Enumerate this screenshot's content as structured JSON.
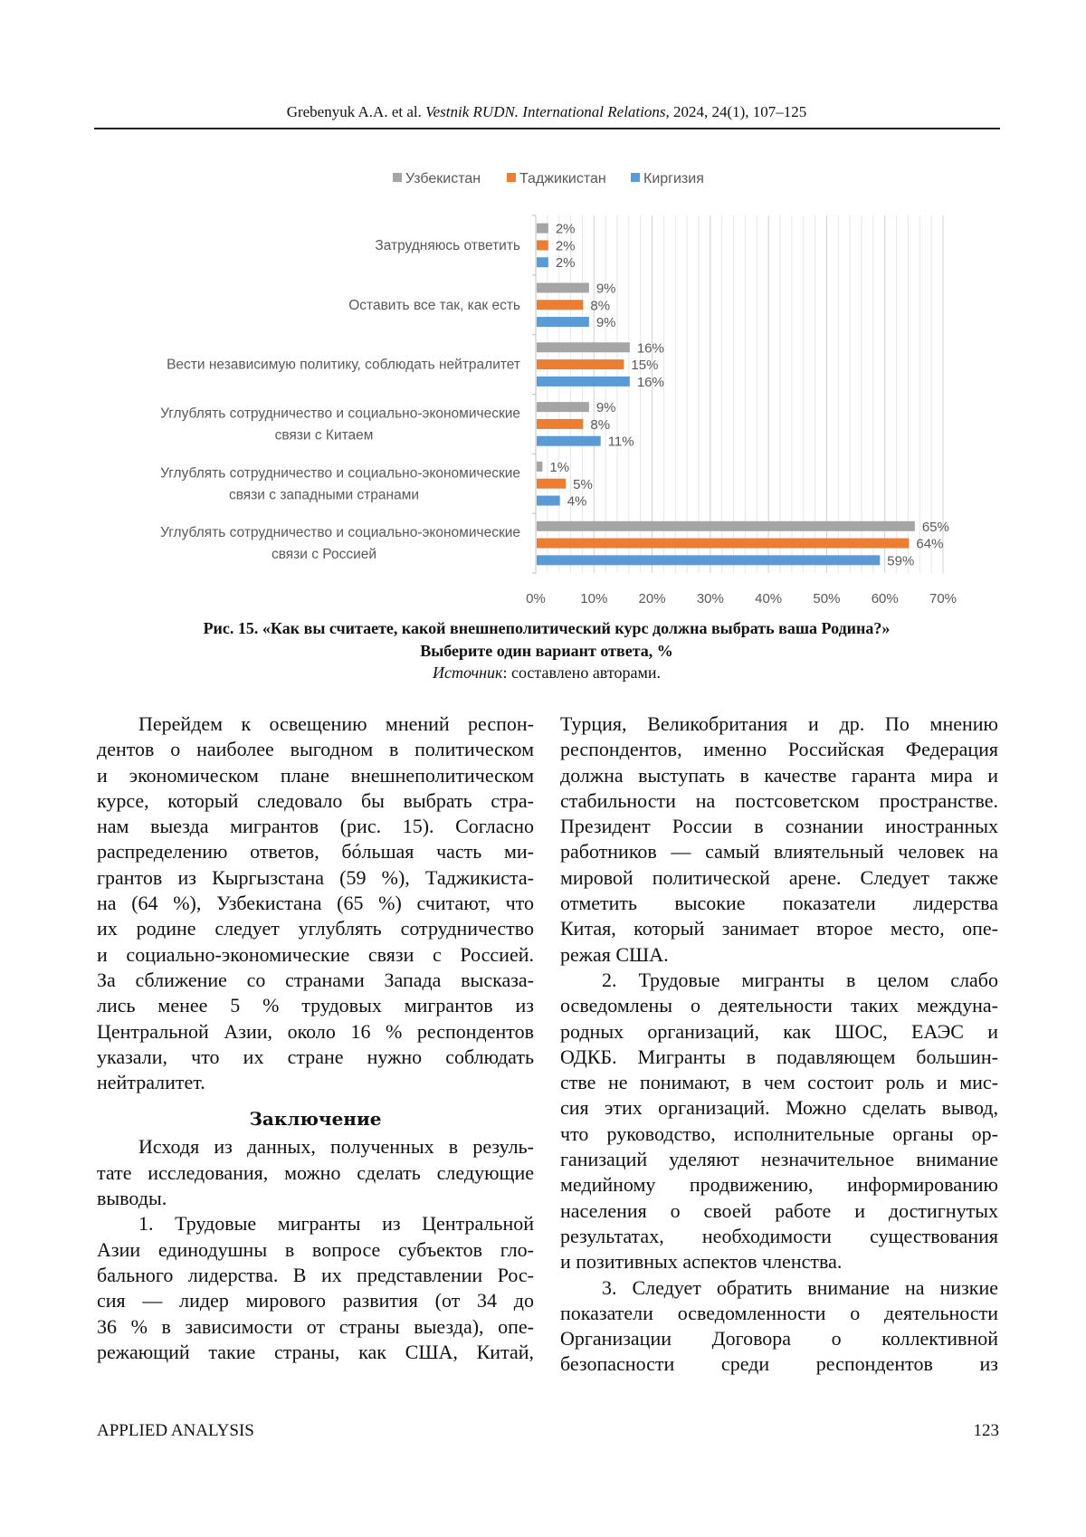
{
  "header": {
    "authors": "Grebenyuk A.A. et al. ",
    "journal": "Vestnik RUDN. International Relations",
    "issue": ", 2024, 24(1), 107–125"
  },
  "chart_data": {
    "type": "bar",
    "orientation": "horizontal",
    "categories": [
      [
        "Затрудняюсь ответить"
      ],
      [
        "Оставить все так, как есть"
      ],
      [
        "Вести независимую политику, соблюдать нейтралитет"
      ],
      [
        "Углублять сотрудничество и социально-экономические",
        "связи с Китаем"
      ],
      [
        "Углублять сотрудничество и социально-экономические",
        "связи с западными странами"
      ],
      [
        "Углублять сотрудничество и социально-экономические",
        "связи с Россией"
      ]
    ],
    "series": [
      {
        "name": "Узбекистан",
        "color": "#a5a5a5",
        "values": [
          2,
          9,
          16,
          9,
          1,
          65
        ]
      },
      {
        "name": "Таджикистан",
        "color": "#ed7d31",
        "values": [
          2,
          8,
          15,
          8,
          5,
          64
        ]
      },
      {
        "name": "Киргизия",
        "color": "#5b9bd5",
        "values": [
          2,
          9,
          16,
          11,
          4,
          59
        ]
      }
    ],
    "xlim": [
      0,
      70
    ],
    "xticks": [
      "0%",
      "10%",
      "20%",
      "30%",
      "40%",
      "50%",
      "60%",
      "70%"
    ],
    "value_suffix": "%",
    "grid": true,
    "legend": "top"
  },
  "caption": {
    "line1": "Рис. 15. «Как вы считаете, какой внешнеполитический курс должна выбрать ваша Родина?»",
    "line2": "Выберите один вариант ответа, %",
    "source_label": "Источник",
    "source_text": ": составлено авторами."
  },
  "left_column": {
    "para1": [
      "Перейдем к освещению мнений респон-",
      "дентов о наиболее выгодном в политическом",
      "и экономическом плане внешнеполитическом",
      "курсе, который следовало бы выбрать стра-",
      "нам выезда мигрантов (рис. 15). Согласно",
      "распределению ответов, бóльшая часть ми-",
      "грантов из Кыргызстана (59 %), Таджикиста-",
      "на (64 %), Узбекистана (65 %) считают, что",
      "их родине следует углублять сотрудничество",
      "и социально-экономические связи с Россией.",
      "За сближение со странами Запада высказа-",
      "лись менее 5 % трудовых мигрантов из",
      "Центральной Азии, около 16 % респондентов",
      "указали, что их стране нужно соблюдать",
      "нейтралитет."
    ],
    "heading": "Заключение",
    "para2": [
      "Исходя из данных, полученных в резуль-",
      "тате исследования, можно сделать следующие",
      "выводы."
    ],
    "para3": [
      "1. Трудовые мигранты из Центральной",
      "Азии единодушны в вопросе субъектов гло-",
      "бального лидерства. В их представлении Рос-",
      "сия — лидер мирового развития (от 34 до",
      "36 % в зависимости от страны выезда), опе-",
      "режающий такие страны, как США, Китай,"
    ]
  },
  "right_column": {
    "para1": [
      "Турция, Великобритания и др. По мнению",
      "респондентов, именно Российская Федерация",
      "должна выступать в качестве гаранта мира и",
      "стабильности на постсоветском пространстве.",
      "Президент России в сознании иностранных",
      "работников — самый влиятельный человек на",
      "мировой политической арене. Следует также",
      "отметить высокие показатели лидерства",
      "Китая, который занимает второе место, опе-",
      "режая США."
    ],
    "para2": [
      "2. Трудовые мигранты в целом слабо",
      "осведомлены о деятельности таких междуна-",
      "родных организаций, как ШОС, ЕАЭС и",
      "ОДКБ. Мигранты в подавляющем большин-",
      "стве не понимают, в чем состоит роль и мис-",
      "сия этих организаций. Можно сделать вывод,",
      "что руководство, исполнительные органы ор-",
      "ганизаций уделяют незначительное внимание",
      "медийному продвижению, информированию",
      "населения о своей работе и достигнутых",
      "результатах, необходимости существования",
      "и позитивных аспектов членства."
    ],
    "para3": [
      "3. Следует обратить внимание на низкие",
      "показатели осведомленности о деятельности",
      "Организации Договора о коллективной",
      "безопасности среди респондентов из"
    ]
  },
  "footer": {
    "section": "APPLIED ANALYSIS",
    "page": "123"
  }
}
